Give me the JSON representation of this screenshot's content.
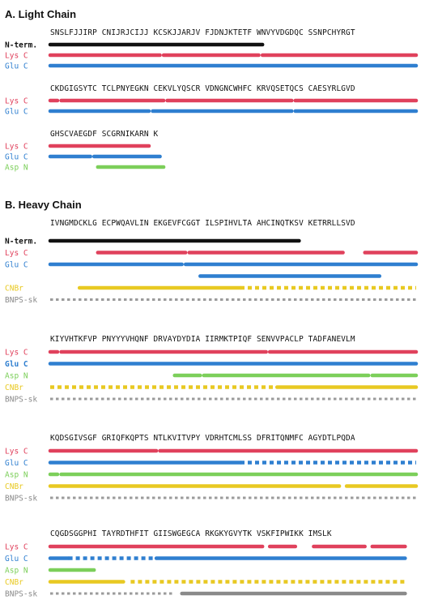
{
  "light_chain": {
    "title": "A. Light Chain",
    "blocks": [
      {
        "sequence": "SNSLFJJIRP CNIJRJCIJJ KCSKJJARJV FJDNJKTETF WNVYVDGDQC SSNPCHYRGT",
        "tracks": [
          {
            "label": "N-term.",
            "color": "#111111",
            "bold": true,
            "segments": [
              [
                0,
                0.58,
                "solid"
              ]
            ]
          },
          {
            "label": "Lys C",
            "color": "#e0415c",
            "segments": [
              [
                0,
                0.3,
                "solid"
              ],
              [
                0.31,
                0.57,
                "solid"
              ],
              [
                0.58,
                1.0,
                "solid"
              ]
            ]
          },
          {
            "label": "Glu C",
            "color": "#2f7fd0",
            "segments": [
              [
                0,
                1.0,
                "solid"
              ]
            ]
          }
        ]
      },
      {
        "sequence": "CKDGIGSYTC TCLPNYEGKN CEKVLYQSCR VDNGNCWHFC KRVQSETQCS CAESYRLGVD",
        "tracks": [
          {
            "label": "Lys C",
            "color": "#e0415c",
            "segments": [
              [
                0,
                0.02,
                "solid"
              ],
              [
                0.03,
                0.31,
                "solid"
              ],
              [
                0.32,
                0.66,
                "solid"
              ],
              [
                0.67,
                1.0,
                "solid"
              ]
            ]
          },
          {
            "label": "Glu C",
            "color": "#2f7fd0",
            "segments": [
              [
                0,
                0.27,
                "solid"
              ],
              [
                0.28,
                0.66,
                "solid"
              ],
              [
                0.67,
                1.0,
                "solid"
              ]
            ]
          }
        ]
      },
      {
        "sequence": "GHSCVAEGDF SCGRNIKARN K",
        "tracks": [
          {
            "label": "Lys C",
            "color": "#e0415c",
            "segments": [
              [
                0,
                0.27,
                "solid"
              ]
            ]
          },
          {
            "label": "Glu C",
            "color": "#2f7fd0",
            "segments": [
              [
                0,
                0.11,
                "solid"
              ],
              [
                0.12,
                0.3,
                "solid"
              ]
            ]
          },
          {
            "label": "Asp N",
            "color": "#7ccf5a",
            "segments": [
              [
                0.13,
                0.31,
                "solid"
              ]
            ]
          }
        ]
      }
    ]
  },
  "heavy_chain": {
    "title": "B. Heavy Chain",
    "blocks": [
      {
        "sequence": "IVNGMDCKLG ECPWQAVLIN EKGEVFCGGT ILSPIHVLTA AHCINQTKSV KETRRLLSVD",
        "tracks": [
          {
            "label": "N-term.",
            "color": "#111111",
            "bold": true,
            "segments": [
              [
                0,
                0.68,
                "solid"
              ]
            ]
          },
          {
            "label": "Lys C",
            "color": "#e0415c",
            "segments": [
              [
                0.13,
                0.37,
                "solid"
              ],
              [
                0.38,
                0.8,
                "solid"
              ],
              [
                0.86,
                1.0,
                "solid"
              ]
            ]
          },
          {
            "label": "Glu C",
            "color": "#2f7fd0",
            "segments": [
              [
                0,
                0.36,
                "solid"
              ],
              [
                0.37,
                1.0,
                "solid"
              ]
            ]
          },
          {
            "label": "",
            "color": "#2f7fd0",
            "segments": [
              [
                0.41,
                0.9,
                "solid"
              ]
            ]
          },
          {
            "label": "CNBr",
            "color": "#e8c922",
            "segments": [
              [
                0.08,
                0.52,
                "solid"
              ],
              [
                0.52,
                1.0,
                "dashed"
              ]
            ]
          },
          {
            "label": "BNPS-sk",
            "color": "#8a8a8a",
            "segments": [
              [
                0,
                1.0,
                "dotted"
              ]
            ]
          }
        ]
      },
      {
        "sequence": "KIYVHTKFVP PNYYYVHQNF DRVAYDYDIA IIRMKTPIQF SENVVPACLP TADFANEVLM",
        "tracks": [
          {
            "label": "Lys C",
            "color": "#e0415c",
            "segments": [
              [
                0,
                0.02,
                "solid"
              ],
              [
                0.03,
                0.59,
                "solid"
              ],
              [
                0.6,
                1.0,
                "solid"
              ]
            ]
          },
          {
            "label": "Glu C",
            "color": "#2f7fd0",
            "bold": true,
            "segments": [
              [
                0,
                1.0,
                "solid"
              ]
            ]
          },
          {
            "label": "Asp N",
            "color": "#7ccf5a",
            "segments": [
              [
                0.34,
                0.41,
                "solid"
              ],
              [
                0.42,
                0.87,
                "solid"
              ],
              [
                0.88,
                1.0,
                "solid"
              ]
            ]
          },
          {
            "label": "CNBr",
            "color": "#e8c922",
            "segments": [
              [
                0,
                0.61,
                "dashed"
              ],
              [
                0.62,
                1.0,
                "solid"
              ]
            ]
          },
          {
            "label": "BNPS-sk",
            "color": "#8a8a8a",
            "segments": [
              [
                0,
                1.0,
                "dotted"
              ]
            ]
          }
        ]
      },
      {
        "sequence": "KQDSGIVSGF GRIQFKQPTS NTLKVITVPY VDRHTCMLSS DFRITQNMFC AGYDTLPQDA",
        "tracks": [
          {
            "label": "Lys C",
            "color": "#e0415c",
            "segments": [
              [
                0,
                0.29,
                "solid"
              ],
              [
                0.3,
                1.0,
                "solid"
              ]
            ]
          },
          {
            "label": "Glu C",
            "color": "#2f7fd0",
            "segments": [
              [
                0,
                0.52,
                "solid"
              ],
              [
                0.52,
                1.0,
                "dashed"
              ]
            ]
          },
          {
            "label": "Asp N",
            "color": "#7ccf5a",
            "segments": [
              [
                0,
                0.02,
                "solid"
              ],
              [
                0.03,
                1.0,
                "solid"
              ]
            ]
          },
          {
            "label": "CNBr",
            "color": "#e8c922",
            "segments": [
              [
                0,
                0.79,
                "solid"
              ],
              [
                0.81,
                1.0,
                "solid"
              ]
            ]
          },
          {
            "label": "BNPS-sk",
            "color": "#8a8a8a",
            "segments": [
              [
                0,
                1.0,
                "dotted"
              ]
            ]
          }
        ]
      },
      {
        "sequence": "CQGDSGGPHI TAYRDTHFIT GIISWGEGCA RKGKYGVYTK VSKFIPWIKK IMSLK",
        "tracks": [
          {
            "label": "Lys C",
            "color": "#e0415c",
            "segments": [
              [
                0,
                0.58,
                "solid"
              ],
              [
                0.6,
                0.67,
                "solid"
              ],
              [
                0.72,
                0.86,
                "solid"
              ],
              [
                0.88,
                0.97,
                "solid"
              ]
            ]
          },
          {
            "label": "Glu C",
            "color": "#2f7fd0",
            "segments": [
              [
                0,
                0.05,
                "solid"
              ],
              [
                0.05,
                0.28,
                "dashed"
              ],
              [
                0.29,
                0.97,
                "solid"
              ]
            ]
          },
          {
            "label": "Asp N",
            "color": "#7ccf5a",
            "segments": [
              [
                0,
                0.12,
                "solid"
              ]
            ]
          },
          {
            "label": "CNBr",
            "color": "#e8c922",
            "segments": [
              [
                0,
                0.2,
                "solid"
              ],
              [
                0.22,
                0.97,
                "dashed"
              ]
            ]
          },
          {
            "label": "BNPS-sk",
            "color": "#8a8a8a",
            "segments": [
              [
                0,
                0.34,
                "dotted"
              ],
              [
                0.36,
                0.97,
                "solid"
              ]
            ]
          }
        ]
      }
    ]
  }
}
